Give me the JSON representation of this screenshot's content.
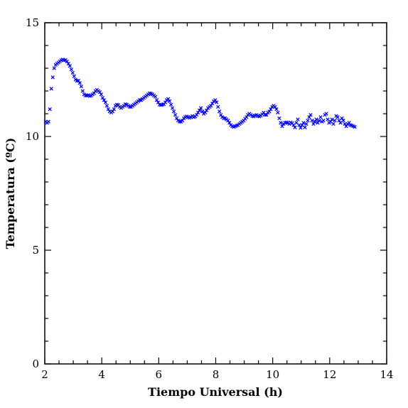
{
  "chart_data": {
    "type": "scatter",
    "title": "",
    "xlabel": "Tiempo Universal (h)",
    "ylabel": "Temperatura (ºC)",
    "xlim": [
      2,
      14
    ],
    "ylim": [
      0,
      15
    ],
    "xticks": [
      2,
      4,
      6,
      8,
      10,
      12,
      14
    ],
    "yticks": [
      0,
      5,
      10,
      15
    ],
    "xtick_labels": [
      "2",
      "4",
      "6",
      "8",
      "10",
      "12",
      "14"
    ],
    "ytick_labels": [
      "0",
      "5",
      "10",
      "15"
    ],
    "grid": false,
    "marker": "x",
    "marker_color": "#0000ff",
    "series": [
      {
        "values": [
          [
            2.03,
            10.65
          ],
          [
            2.08,
            10.6
          ],
          [
            2.13,
            10.65
          ],
          [
            2.18,
            11.2
          ],
          [
            2.23,
            12.1
          ],
          [
            2.28,
            12.6
          ],
          [
            2.33,
            13.0
          ],
          [
            2.38,
            13.15
          ],
          [
            2.43,
            13.2
          ],
          [
            2.48,
            13.25
          ],
          [
            2.53,
            13.3
          ],
          [
            2.58,
            13.35
          ],
          [
            2.63,
            13.38
          ],
          [
            2.68,
            13.35
          ],
          [
            2.73,
            13.36
          ],
          [
            2.78,
            13.3
          ],
          [
            2.83,
            13.2
          ],
          [
            2.88,
            13.1
          ],
          [
            2.93,
            12.95
          ],
          [
            2.98,
            12.8
          ],
          [
            3.03,
            12.65
          ],
          [
            3.08,
            12.5
          ],
          [
            3.13,
            12.45
          ],
          [
            3.18,
            12.45
          ],
          [
            3.23,
            12.35
          ],
          [
            3.28,
            12.2
          ],
          [
            3.33,
            12.0
          ],
          [
            3.38,
            11.85
          ],
          [
            3.43,
            11.8
          ],
          [
            3.48,
            11.8
          ],
          [
            3.53,
            11.82
          ],
          [
            3.58,
            11.78
          ],
          [
            3.63,
            11.8
          ],
          [
            3.68,
            11.85
          ],
          [
            3.73,
            11.9
          ],
          [
            3.78,
            12.0
          ],
          [
            3.83,
            12.05
          ],
          [
            3.88,
            12.0
          ],
          [
            3.93,
            11.95
          ],
          [
            3.98,
            11.85
          ],
          [
            4.03,
            11.7
          ],
          [
            4.08,
            11.6
          ],
          [
            4.13,
            11.5
          ],
          [
            4.18,
            11.35
          ],
          [
            4.23,
            11.2
          ],
          [
            4.28,
            11.1
          ],
          [
            4.33,
            11.05
          ],
          [
            4.38,
            11.1
          ],
          [
            4.43,
            11.2
          ],
          [
            4.48,
            11.35
          ],
          [
            4.53,
            11.4
          ],
          [
            4.58,
            11.38
          ],
          [
            4.63,
            11.3
          ],
          [
            4.68,
            11.25
          ],
          [
            4.73,
            11.3
          ],
          [
            4.78,
            11.35
          ],
          [
            4.83,
            11.42
          ],
          [
            4.88,
            11.4
          ],
          [
            4.93,
            11.35
          ],
          [
            4.98,
            11.3
          ],
          [
            5.03,
            11.3
          ],
          [
            5.08,
            11.35
          ],
          [
            5.13,
            11.4
          ],
          [
            5.18,
            11.45
          ],
          [
            5.23,
            11.5
          ],
          [
            5.28,
            11.55
          ],
          [
            5.33,
            11.6
          ],
          [
            5.38,
            11.6
          ],
          [
            5.43,
            11.65
          ],
          [
            5.48,
            11.7
          ],
          [
            5.53,
            11.75
          ],
          [
            5.58,
            11.8
          ],
          [
            5.63,
            11.85
          ],
          [
            5.68,
            11.9
          ],
          [
            5.73,
            11.88
          ],
          [
            5.78,
            11.85
          ],
          [
            5.83,
            11.8
          ],
          [
            5.88,
            11.75
          ],
          [
            5.93,
            11.6
          ],
          [
            5.98,
            11.5
          ],
          [
            6.03,
            11.4
          ],
          [
            6.08,
            11.38
          ],
          [
            6.13,
            11.4
          ],
          [
            6.18,
            11.42
          ],
          [
            6.23,
            11.5
          ],
          [
            6.28,
            11.6
          ],
          [
            6.33,
            11.65
          ],
          [
            6.38,
            11.55
          ],
          [
            6.43,
            11.4
          ],
          [
            6.48,
            11.25
          ],
          [
            6.53,
            11.1
          ],
          [
            6.58,
            10.95
          ],
          [
            6.63,
            10.8
          ],
          [
            6.68,
            10.7
          ],
          [
            6.73,
            10.65
          ],
          [
            6.78,
            10.65
          ],
          [
            6.83,
            10.7
          ],
          [
            6.88,
            10.8
          ],
          [
            6.93,
            10.85
          ],
          [
            6.98,
            10.88
          ],
          [
            7.03,
            10.85
          ],
          [
            7.08,
            10.82
          ],
          [
            7.13,
            10.85
          ],
          [
            7.18,
            10.9
          ],
          [
            7.23,
            10.85
          ],
          [
            7.28,
            10.88
          ],
          [
            7.33,
            10.95
          ],
          [
            7.38,
            11.05
          ],
          [
            7.43,
            11.15
          ],
          [
            7.48,
            11.25
          ],
          [
            7.53,
            11.1
          ],
          [
            7.58,
            11.0
          ],
          [
            7.63,
            11.05
          ],
          [
            7.68,
            11.15
          ],
          [
            7.73,
            11.25
          ],
          [
            7.78,
            11.3
          ],
          [
            7.83,
            11.35
          ],
          [
            7.88,
            11.45
          ],
          [
            7.93,
            11.55
          ],
          [
            7.98,
            11.6
          ],
          [
            8.03,
            11.5
          ],
          [
            8.08,
            11.3
          ],
          [
            8.13,
            11.1
          ],
          [
            8.18,
            10.95
          ],
          [
            8.23,
            10.85
          ],
          [
            8.28,
            10.8
          ],
          [
            8.33,
            10.8
          ],
          [
            8.38,
            10.75
          ],
          [
            8.43,
            10.7
          ],
          [
            8.48,
            10.6
          ],
          [
            8.53,
            10.5
          ],
          [
            8.58,
            10.45
          ],
          [
            8.63,
            10.42
          ],
          [
            8.68,
            10.45
          ],
          [
            8.73,
            10.48
          ],
          [
            8.78,
            10.5
          ],
          [
            8.83,
            10.55
          ],
          [
            8.88,
            10.6
          ],
          [
            8.93,
            10.65
          ],
          [
            8.98,
            10.7
          ],
          [
            9.03,
            10.78
          ],
          [
            9.08,
            10.85
          ],
          [
            9.13,
            10.95
          ],
          [
            9.18,
            11.0
          ],
          [
            9.23,
            10.95
          ],
          [
            9.28,
            10.9
          ],
          [
            9.33,
            10.88
          ],
          [
            9.38,
            10.92
          ],
          [
            9.43,
            10.95
          ],
          [
            9.48,
            10.9
          ],
          [
            9.53,
            10.88
          ],
          [
            9.58,
            10.92
          ],
          [
            9.63,
            10.98
          ],
          [
            9.68,
            11.05
          ],
          [
            9.73,
            10.95
          ],
          [
            9.78,
            10.95
          ],
          [
            9.83,
            11.05
          ],
          [
            9.88,
            11.1
          ],
          [
            9.93,
            11.2
          ],
          [
            9.98,
            11.3
          ],
          [
            10.03,
            11.35
          ],
          [
            10.08,
            11.3
          ],
          [
            10.13,
            11.2
          ],
          [
            10.18,
            11.05
          ],
          [
            10.23,
            10.8
          ],
          [
            10.28,
            10.6
          ],
          [
            10.33,
            10.45
          ],
          [
            10.38,
            10.55
          ],
          [
            10.43,
            10.6
          ],
          [
            10.48,
            10.62
          ],
          [
            10.53,
            10.6
          ],
          [
            10.58,
            10.55
          ],
          [
            10.63,
            10.62
          ],
          [
            10.68,
            10.58
          ],
          [
            10.73,
            10.5
          ],
          [
            10.78,
            10.4
          ],
          [
            10.83,
            10.6
          ],
          [
            10.88,
            10.75
          ],
          [
            10.93,
            10.5
          ],
          [
            10.98,
            10.38
          ],
          [
            11.03,
            10.5
          ],
          [
            11.08,
            10.6
          ],
          [
            11.13,
            10.4
          ],
          [
            11.18,
            10.55
          ],
          [
            11.23,
            10.7
          ],
          [
            11.28,
            10.85
          ],
          [
            11.33,
            10.95
          ],
          [
            11.38,
            10.7
          ],
          [
            11.43,
            10.55
          ],
          [
            11.48,
            10.65
          ],
          [
            11.53,
            10.75
          ],
          [
            11.58,
            10.6
          ],
          [
            11.63,
            10.7
          ],
          [
            11.68,
            10.85
          ],
          [
            11.73,
            10.65
          ],
          [
            11.78,
            10.7
          ],
          [
            11.83,
            10.95
          ],
          [
            11.88,
            11.0
          ],
          [
            11.93,
            10.75
          ],
          [
            11.98,
            10.6
          ],
          [
            12.03,
            10.65
          ],
          [
            12.08,
            10.75
          ],
          [
            12.13,
            10.55
          ],
          [
            12.18,
            10.7
          ],
          [
            12.23,
            10.9
          ],
          [
            12.28,
            10.85
          ],
          [
            12.33,
            10.7
          ],
          [
            12.38,
            10.6
          ],
          [
            12.43,
            10.8
          ],
          [
            12.48,
            10.7
          ],
          [
            12.53,
            10.55
          ],
          [
            12.58,
            10.45
          ],
          [
            12.63,
            10.55
          ],
          [
            12.68,
            10.6
          ],
          [
            12.73,
            10.5
          ],
          [
            12.78,
            10.48
          ],
          [
            12.83,
            10.45
          ],
          [
            12.88,
            10.42
          ]
        ]
      }
    ]
  }
}
